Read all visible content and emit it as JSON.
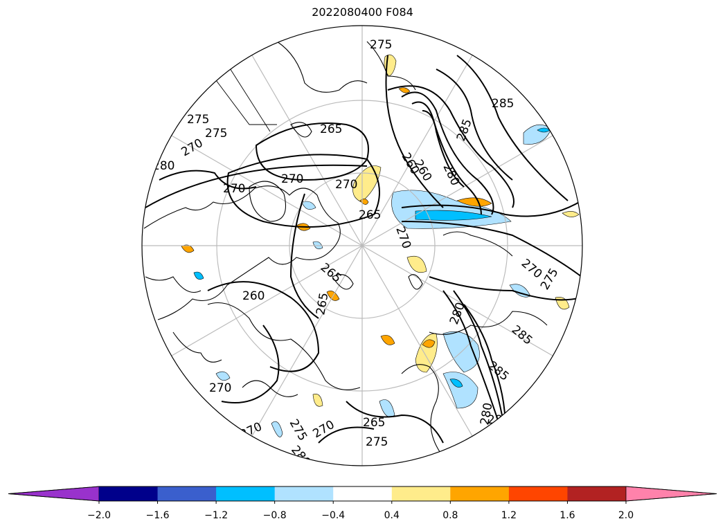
{
  "title": "2022080400 F084",
  "colorbar": {
    "colors": [
      "#9932cc",
      "#00008b",
      "#3a5fcd",
      "#00bfff",
      "#b0e2ff",
      "#ffffff",
      "#ffec8b",
      "#ffa500",
      "#ff4500",
      "#b22222",
      "#ff82ab"
    ],
    "extend": "both",
    "tick_labels": [
      "−2.0",
      "−1.6",
      "−1.2",
      "−0.8",
      "−0.4",
      "0.4",
      "0.8",
      "1.2",
      "1.6",
      "2.0"
    ]
  },
  "contour_labels": [
    "265",
    "270",
    "275",
    "280",
    "285",
    "260",
    "270",
    "275",
    "280",
    "285",
    "265",
    "270",
    "260",
    "265",
    "270",
    "275",
    "280",
    "285",
    "270",
    "270",
    "275",
    "280",
    "265",
    "270",
    "275",
    "280",
    "285",
    "270",
    "260",
    "270",
    "265",
    "275",
    "280"
  ],
  "map": {
    "projection": "north polar stereographic",
    "graticule": "on",
    "coastlines": "on",
    "borders": "on"
  }
}
